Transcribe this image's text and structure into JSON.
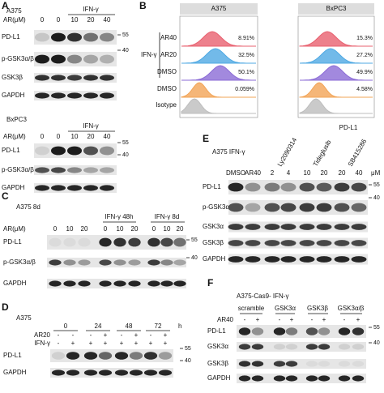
{
  "panel_a": {
    "label": "A",
    "cell_line_1": "A375",
    "treatment": "IFN-γ",
    "dose_label": "AR(μM)",
    "doses_1": [
      "0",
      "0",
      "10",
      "20",
      "40"
    ],
    "blots_1": [
      "PD-L1",
      "p-GSK3α/β",
      "GSK3β",
      "GAPDH"
    ],
    "markers_1": [
      "55",
      "40"
    ],
    "cell_line_2": "BxPC3",
    "doses_2": [
      "0",
      "0",
      "10",
      "20",
      "40"
    ],
    "blots_2": [
      "PD-L1",
      "p-GSK3α/β",
      "GAPDH"
    ],
    "markers_2": [
      "55",
      "40"
    ]
  },
  "panel_b": {
    "label": "B",
    "columns": [
      "A375",
      "BxPC3"
    ],
    "treatment": "IFN-γ",
    "rows": [
      "AR40",
      "AR20",
      "DMSO",
      "DMSO",
      "Isotype"
    ],
    "percent_a375": [
      "8.91%",
      "32.5%",
      "50.1%",
      "0.059%"
    ],
    "percent_bxpc3": [
      "15.3%",
      "27.2%",
      "49.9%",
      "4.58%"
    ],
    "x_axis": "PD-L1"
  },
  "panel_c": {
    "label": "C",
    "title": "A375 8d",
    "groups": [
      "IFN-γ 48h",
      "IFN-γ 8d"
    ],
    "dose_label": "AR(μM)",
    "doses": [
      "0",
      "10",
      "20",
      "0",
      "10",
      "20",
      "0",
      "10",
      "20"
    ],
    "blots": [
      "PD-L1",
      "p-GSK3α/β",
      "GAPDH"
    ],
    "markers": [
      "55",
      "40"
    ]
  },
  "panel_d": {
    "label": "D",
    "title": "A375",
    "times": [
      "0",
      "24",
      "48",
      "72"
    ],
    "time_unit": "h",
    "rows": [
      "AR20",
      "IFN-γ"
    ],
    "ar20": [
      "-",
      "-",
      "-",
      "+",
      "-",
      "+",
      "-",
      "+"
    ],
    "ifn": [
      "-",
      "+",
      "+",
      "+",
      "+",
      "+",
      "+",
      "+"
    ],
    "blots": [
      "PD-L1",
      "GAPDH"
    ],
    "markers": [
      "55",
      "40"
    ]
  },
  "panel_e": {
    "label": "E",
    "title": "A375 IFN-γ",
    "inhibitors": [
      "Ly2090314",
      "Tideglusib",
      "SB415286"
    ],
    "lanes": [
      "DMSO",
      "AR40",
      "2",
      "4",
      "10",
      "20",
      "20",
      "40"
    ],
    "unit": "μM",
    "blots": [
      "PD-L1",
      "p-GSK3α/β",
      "GSK3α",
      "GSK3β",
      "GAPDH"
    ],
    "markers": [
      "55",
      "40"
    ]
  },
  "panel_f": {
    "label": "F",
    "title": "A375-Cas9- IFN-γ",
    "groups": [
      "scramble",
      "GSK3α",
      "GSK3β",
      "GSK3α/β"
    ],
    "treatment": "AR40",
    "signs": [
      "-",
      "+",
      "-",
      "+",
      "-",
      "+",
      "-",
      "+"
    ],
    "blots": [
      "PD-L1",
      "GSK3α",
      "GSK3β",
      "GAPDH"
    ],
    "markers": [
      "55",
      "40"
    ]
  }
}
